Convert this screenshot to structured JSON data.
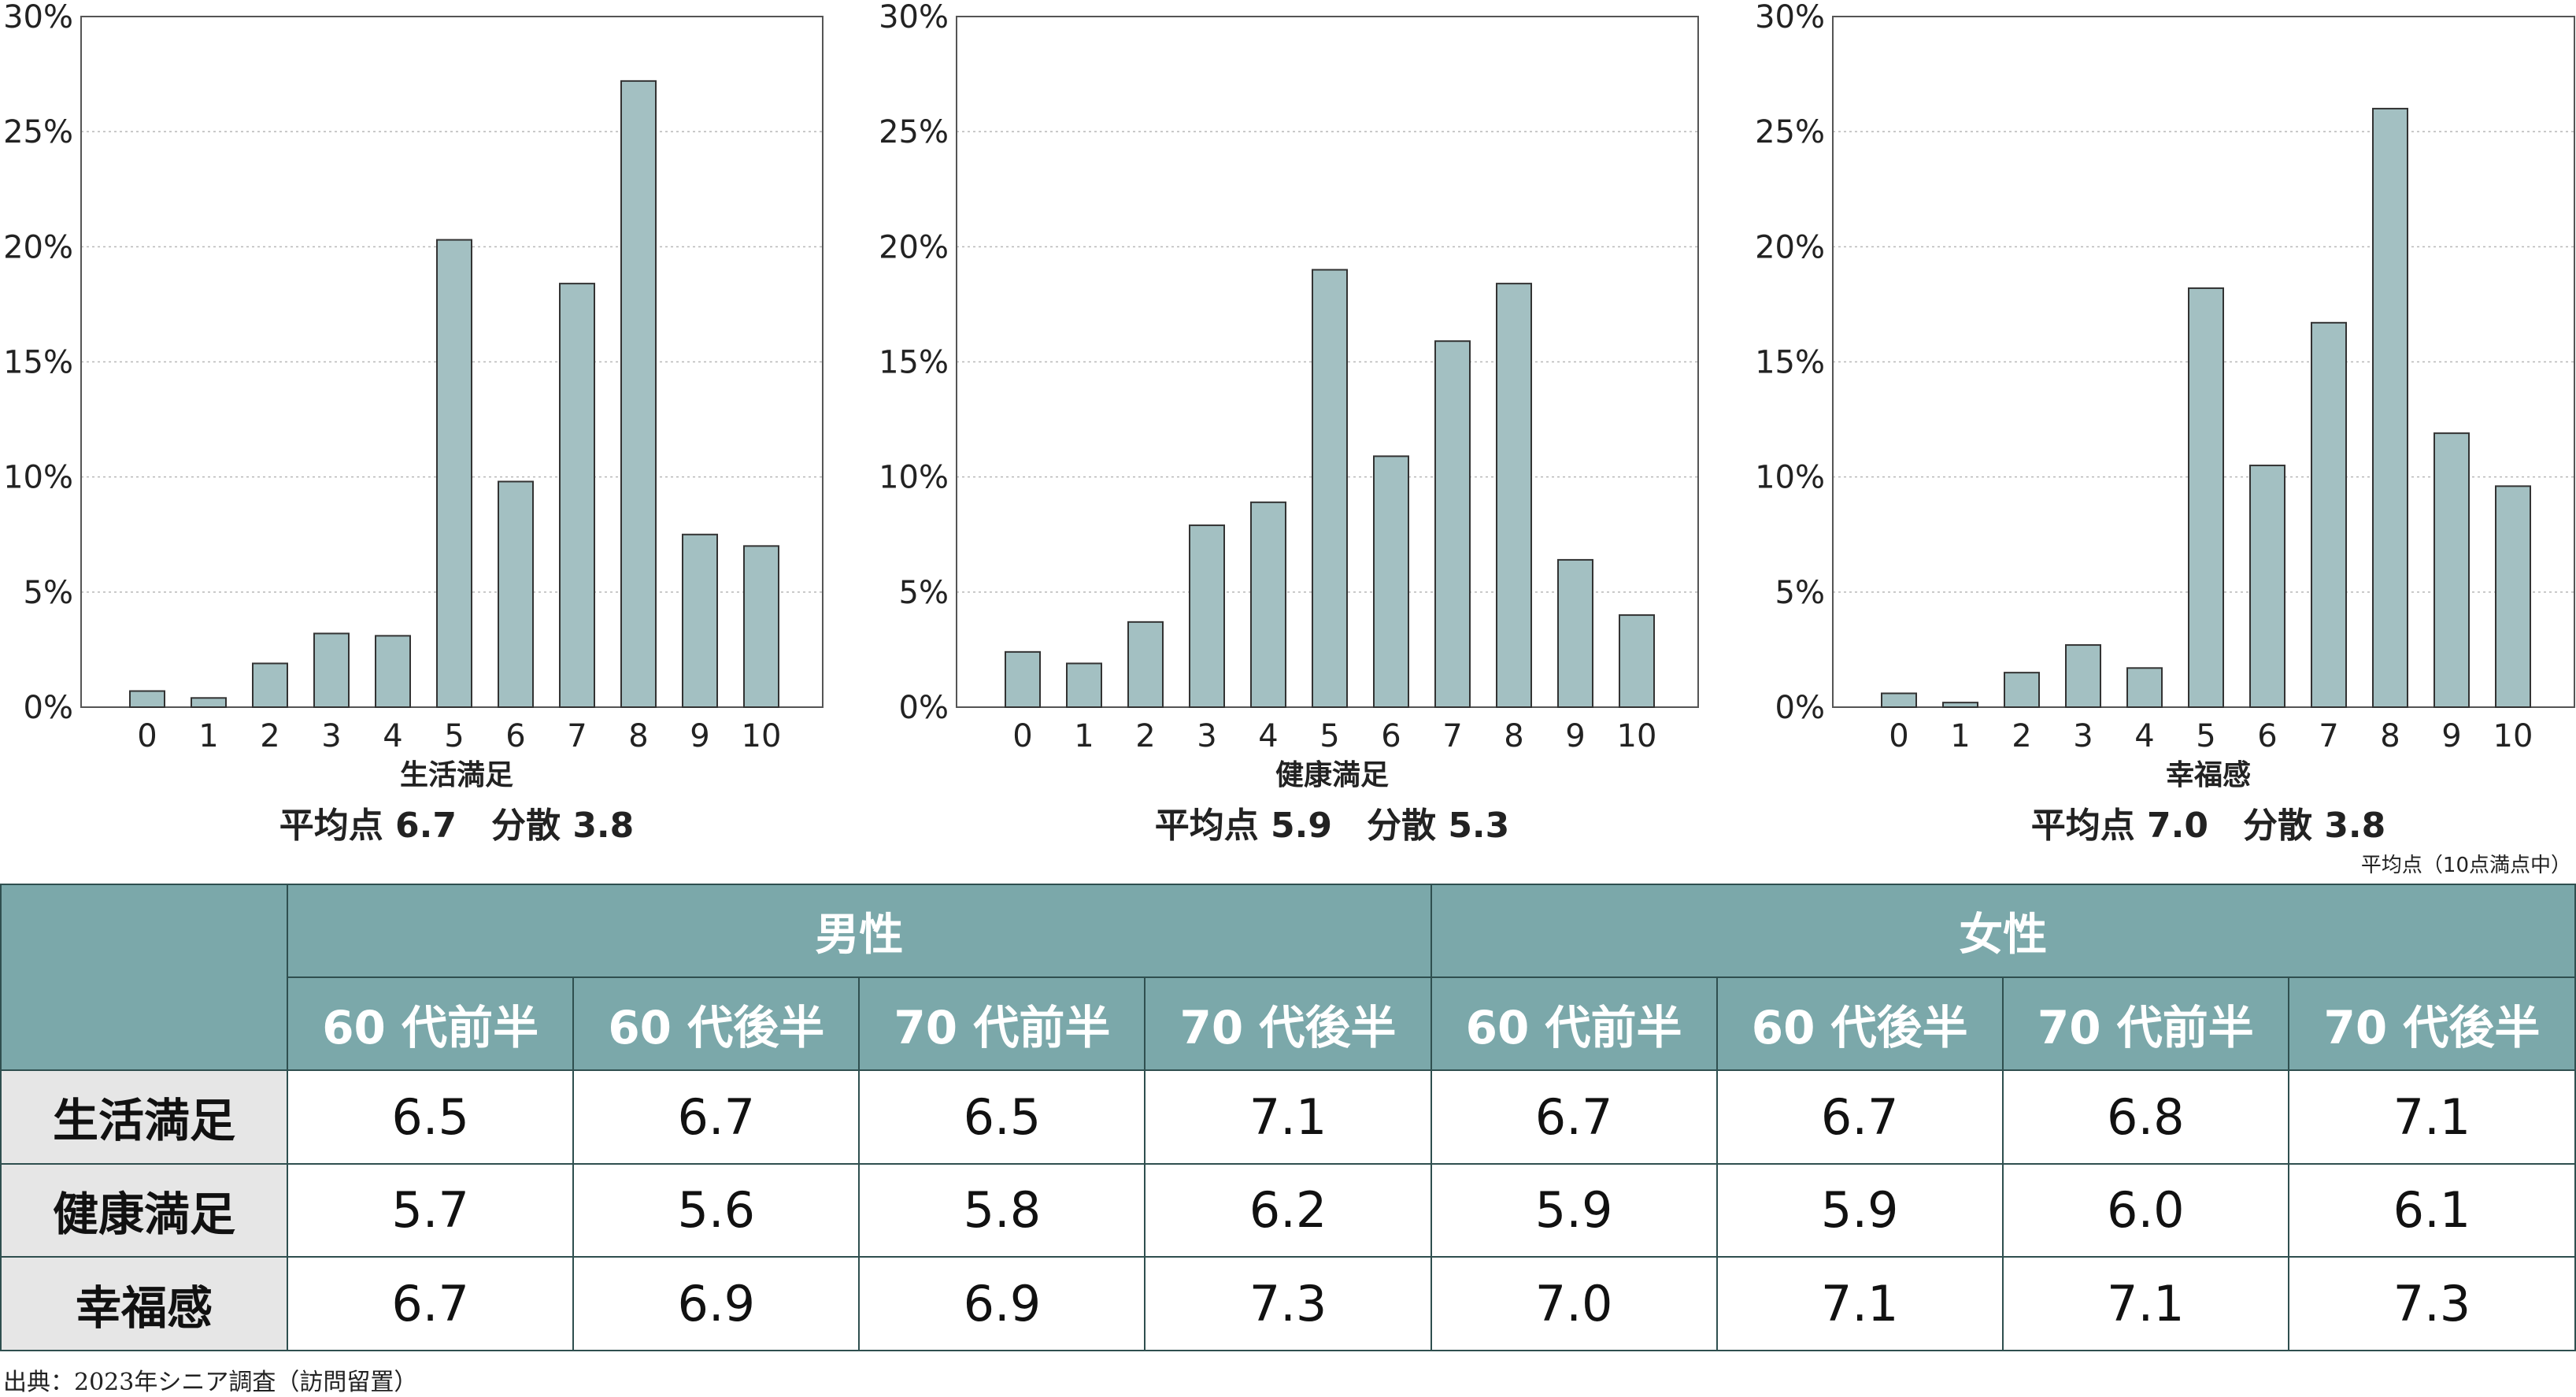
{
  "chart_data": [
    {
      "type": "bar",
      "categories": [
        "0",
        "1",
        "2",
        "3",
        "4",
        "5",
        "6",
        "7",
        "8",
        "9",
        "10"
      ],
      "values": [
        0.7,
        0.4,
        1.9,
        3.2,
        3.1,
        20.3,
        9.8,
        18.4,
        27.2,
        7.5,
        7.0
      ],
      "xlabel": "生活満足",
      "stats": "平均点 6.7　分散 3.8",
      "ylim": [
        0,
        30
      ],
      "yticks": [
        0,
        5,
        10,
        15,
        20,
        25,
        30
      ],
      "yunit": "%",
      "grid": true
    },
    {
      "type": "bar",
      "categories": [
        "0",
        "1",
        "2",
        "3",
        "4",
        "5",
        "6",
        "7",
        "8",
        "9",
        "10"
      ],
      "values": [
        2.4,
        1.9,
        3.7,
        7.9,
        8.9,
        19.0,
        10.9,
        15.9,
        18.4,
        6.4,
        4.0
      ],
      "xlabel": "健康満足",
      "stats": "平均点 5.9　分散 5.3",
      "ylim": [
        0,
        30
      ],
      "yticks": [
        0,
        5,
        10,
        15,
        20,
        25,
        30
      ],
      "yunit": "%",
      "grid": true
    },
    {
      "type": "bar",
      "categories": [
        "0",
        "1",
        "2",
        "3",
        "4",
        "5",
        "6",
        "7",
        "8",
        "9",
        "10"
      ],
      "values": [
        0.6,
        0.2,
        1.5,
        2.7,
        1.7,
        18.2,
        10.5,
        16.7,
        26.0,
        11.9,
        9.6
      ],
      "xlabel": "幸福感",
      "stats": "平均点 7.0　分散 3.8",
      "ylim": [
        0,
        30
      ],
      "yticks": [
        0,
        5,
        10,
        15,
        20,
        25,
        30
      ],
      "yunit": "%",
      "grid": true
    }
  ],
  "colors": {
    "bar_fill": "#a3c0c2",
    "bar_stroke": "#333333",
    "header_fill": "#7ba8aa",
    "row_label_fill": "#e6e6e6"
  },
  "unit_note": "平均点（10点満点中）",
  "table": {
    "groups": [
      "男性",
      "女性"
    ],
    "subheaders": [
      "60 代前半",
      "60 代後半",
      "70 代前半",
      "70 代後半",
      "60 代前半",
      "60 代後半",
      "70 代前半",
      "70 代後半"
    ],
    "rows": [
      {
        "label": "生活満足",
        "values": [
          "6.5",
          "6.7",
          "6.5",
          "7.1",
          "6.7",
          "6.7",
          "6.8",
          "7.1"
        ]
      },
      {
        "label": "健康満足",
        "values": [
          "5.7",
          "5.6",
          "5.8",
          "6.2",
          "5.9",
          "5.9",
          "6.0",
          "6.1"
        ]
      },
      {
        "label": "幸福感",
        "values": [
          "6.7",
          "6.9",
          "6.9",
          "7.3",
          "7.0",
          "7.1",
          "7.1",
          "7.3"
        ]
      }
    ]
  },
  "source": "出典：2023年シニア調査（訪問留置）"
}
